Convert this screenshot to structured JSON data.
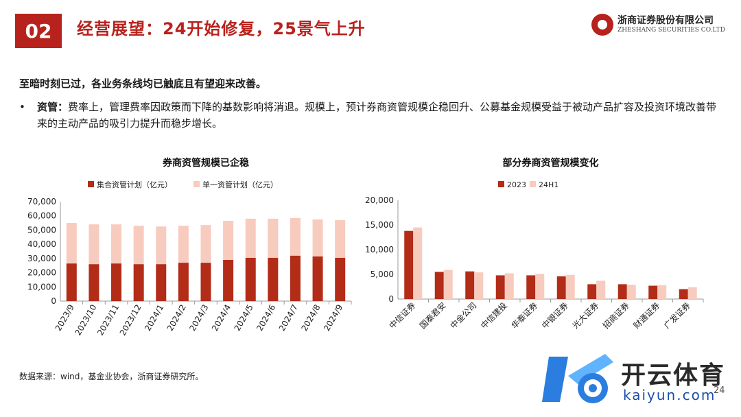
{
  "header": {
    "section_no": "02",
    "title": "经营展望：24开始修复，25景气上升"
  },
  "logo": {
    "cn": "浙商证券股份有限公司",
    "en": "ZHESHANG SECURITIES CO.LTD"
  },
  "lead": "至暗时刻已过，各业务条线均已触底且有望迎来改善。",
  "bullet": {
    "marker": "•",
    "label": "资管：",
    "text": "费率上，管理费率因政策而下降的基数影响将消退。规模上，预计券商资管规模企稳回升、公募基金规模受益于被动产品扩容及投资环境改善带来的主动产品的吸引力提升而稳步增长。"
  },
  "source": "数据来源：wind，基金业协会，浙商证券研究所。",
  "watermark": {
    "text": "开云体育",
    "url": "kaiyun.com"
  },
  "page_number": "24",
  "colors": {
    "brand_red": "#b8221d",
    "series_dark": "#b22c17",
    "series_light": "#f8cbbf"
  },
  "chart_data": [
    {
      "type": "bar",
      "stacked": true,
      "title": "券商资管规模已企稳",
      "categories": [
        "2023/9",
        "2023/10",
        "2023/11",
        "2023/12",
        "2024/1",
        "2024/2",
        "2024/3",
        "2024/4",
        "2024/5",
        "2024/6",
        "2024/7",
        "2024/8",
        "2024/9"
      ],
      "series": [
        {
          "name": "集合资管计划（亿元）",
          "values": [
            26500,
            26000,
            26500,
            26000,
            26000,
            27000,
            27000,
            29000,
            30500,
            30500,
            32000,
            31500,
            30500
          ]
        },
        {
          "name": "单一资管计划（亿元）",
          "values": [
            28500,
            28000,
            27500,
            27000,
            26500,
            26000,
            26500,
            27500,
            27500,
            27500,
            26500,
            26000,
            26500
          ]
        }
      ],
      "ylim": [
        0,
        70000
      ],
      "yticks": [
        0,
        10000,
        20000,
        30000,
        40000,
        50000,
        60000,
        70000
      ],
      "ytick_labels": [
        "0",
        "10,000",
        "20,000",
        "30,000",
        "40,000",
        "50,000",
        "60,000",
        "70,000"
      ],
      "legend": "top"
    },
    {
      "type": "bar",
      "title": "部分券商资管规模变化",
      "categories": [
        "中信证券",
        "国泰君安",
        "中金公司",
        "中信建投",
        "华泰证券",
        "中银证券",
        "光大证券",
        "招商证券",
        "财通证券",
        "广发证券"
      ],
      "series": [
        {
          "name": "2023",
          "values": [
            13800,
            5500,
            5600,
            4800,
            4800,
            4600,
            3000,
            3000,
            2700,
            2000
          ]
        },
        {
          "name": "24H1",
          "values": [
            14500,
            5900,
            5400,
            5200,
            5100,
            4900,
            3700,
            2900,
            2800,
            2400
          ]
        }
      ],
      "ylim": [
        0,
        20000
      ],
      "yticks": [
        0,
        5000,
        10000,
        15000,
        20000
      ],
      "ytick_labels": [
        "0",
        "5,000",
        "10,000",
        "15,000",
        "20,000"
      ],
      "legend": "top"
    }
  ]
}
